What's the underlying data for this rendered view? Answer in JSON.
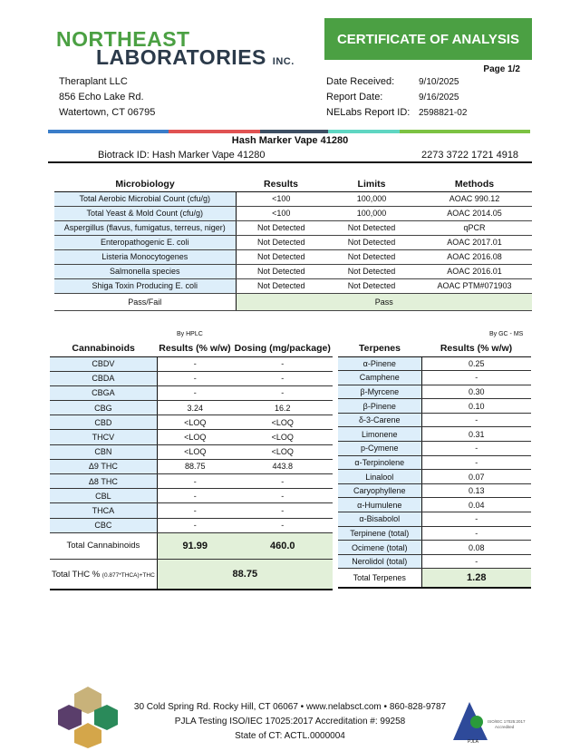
{
  "logo": {
    "line1": "NORTHEAST",
    "line2": "LABORATORIES",
    "suffix": "INC."
  },
  "banner": "CERTIFICATE OF ANALYSIS",
  "page": "Page 1/2",
  "client": [
    "Theraplant LLC",
    "856 Echo Lake Rd.",
    "Watertown, CT 06795"
  ],
  "report": [
    {
      "label": "Date Received:",
      "value": "9/10/2025"
    },
    {
      "label": "Report Date:",
      "value": "9/16/2025"
    },
    {
      "label": "NELabs Report ID:",
      "value": "2598821-02"
    }
  ],
  "colors": {
    "brand": "#4ba043",
    "bar": [
      "#3a7dc9",
      "#e05252",
      "#3d4f63",
      "#5fd6c2",
      "#7cc242"
    ],
    "label_bg": "#ddeefa",
    "result_bg": "#e2f0d9"
  },
  "product": "Hash Marker Vape 41280",
  "biotrack": {
    "label": "Biotrack ID:  Hash Marker Vape 41280",
    "id": "2273 3722 1721 4918"
  },
  "micro": {
    "headers": [
      "Microbiology",
      "Results",
      "Limits",
      "Methods"
    ],
    "rows": [
      [
        "Total Aerobic Microbial Count (cfu/g)",
        "<100",
        "100,000",
        "AOAC 990.12"
      ],
      [
        "Total Yeast & Mold Count (cfu/g)",
        "<100",
        "100,000",
        "AOAC 2014.05"
      ],
      [
        "Aspergillus (flavus, fumigatus, terreus, niger)",
        "Not Detected",
        "Not Detected",
        "qPCR"
      ],
      [
        "Enteropathogenic E. coli",
        "Not Detected",
        "Not Detected",
        "AOAC 2017.01"
      ],
      [
        "Listeria Monocytogenes",
        "Not Detected",
        "Not Detected",
        "AOAC 2016.08"
      ],
      [
        "Salmonella species",
        "Not Detected",
        "Not Detected",
        "AOAC 2016.01"
      ],
      [
        "Shiga Toxin Producing E. coli",
        "Not Detected",
        "Not Detected",
        "AOAC PTM#071903"
      ]
    ],
    "passfail_label": "Pass/Fail",
    "passfail": "Pass"
  },
  "cannabinoids": {
    "method": "By HPLC",
    "headers": [
      "Cannabinoids",
      "Results (% w/w)",
      "Dosing (mg/package)"
    ],
    "rows": [
      [
        "CBDV",
        "-",
        "-"
      ],
      [
        "CBDA",
        "-",
        "-"
      ],
      [
        "CBGA",
        "-",
        "-"
      ],
      [
        "CBG",
        "3.24",
        "16.2"
      ],
      [
        "CBD",
        "<LOQ",
        "<LOQ"
      ],
      [
        "THCV",
        "<LOQ",
        "<LOQ"
      ],
      [
        "CBN",
        "<LOQ",
        "<LOQ"
      ],
      [
        "Δ9 THC",
        "88.75",
        "443.8"
      ],
      [
        "Δ8 THC",
        "-",
        "-"
      ],
      [
        "CBL",
        "-",
        "-"
      ],
      [
        "THCA",
        "-",
        "-"
      ],
      [
        "CBC",
        "-",
        "-"
      ]
    ],
    "total_label": "Total Cannabinoids",
    "total_result": "91.99",
    "total_dosing": "460.0",
    "thc_label": "Total THC %",
    "thc_formula": "(0.877*THCA)+THC",
    "thc_value": "88.75"
  },
  "terpenes": {
    "method": "By GC - MS",
    "headers": [
      "Terpenes",
      "Results (% w/w)"
    ],
    "rows": [
      [
        "α-Pinene",
        "0.25"
      ],
      [
        "Camphene",
        "-"
      ],
      [
        "β-Myrcene",
        "0.30"
      ],
      [
        "β-Pinene",
        "0.10"
      ],
      [
        "δ-3-Carene",
        "-"
      ],
      [
        "Limonene",
        "0.31"
      ],
      [
        "p-Cymene",
        "-"
      ],
      [
        "α-Terpinolene",
        "-"
      ],
      [
        "Linalool",
        "0.07"
      ],
      [
        "Caryophyllene",
        "0.13"
      ],
      [
        "α-Humulene",
        "0.04"
      ],
      [
        "α-Bisabolol",
        "-"
      ],
      [
        "Terpinene (total)",
        "-"
      ],
      [
        "Ocimene (total)",
        "0.08"
      ],
      [
        "Nerolidol (total)",
        "-"
      ]
    ],
    "total_label": "Total Terpenes",
    "total": "1.28"
  },
  "footer": [
    "30 Cold Spring Rd. Rocky Hill, CT 06067  •  www.nelabsct.com  •  860-828-9787",
    "PJLA Testing ISO/IEC 17025:2017 Accreditation #: 99258",
    "State of CT: ACTL.0000004"
  ],
  "pjla": {
    "name": "PJLA",
    "text": "ISO/IEC 17025:2017 Accredited"
  }
}
